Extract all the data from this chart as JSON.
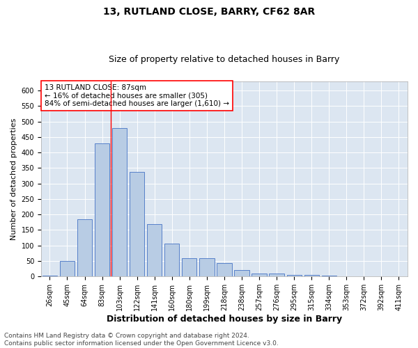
{
  "title": "13, RUTLAND CLOSE, BARRY, CF62 8AR",
  "subtitle": "Size of property relative to detached houses in Barry",
  "xlabel": "Distribution of detached houses by size in Barry",
  "ylabel": "Number of detached properties",
  "categories": [
    "26sqm",
    "45sqm",
    "64sqm",
    "83sqm",
    "103sqm",
    "122sqm",
    "141sqm",
    "160sqm",
    "180sqm",
    "199sqm",
    "218sqm",
    "238sqm",
    "257sqm",
    "276sqm",
    "295sqm",
    "315sqm",
    "334sqm",
    "353sqm",
    "372sqm",
    "392sqm",
    "411sqm"
  ],
  "values": [
    3,
    50,
    185,
    430,
    480,
    337,
    170,
    106,
    60,
    60,
    44,
    20,
    10,
    10,
    6,
    4,
    2,
    1,
    1,
    1,
    1
  ],
  "bar_color": "#b8cce4",
  "bar_edge_color": "#4472c4",
  "background_color": "#dce6f1",
  "grid_color": "#ffffff",
  "vline_x": 3.5,
  "annotation_text": "13 RUTLAND CLOSE: 87sqm\n← 16% of detached houses are smaller (305)\n84% of semi-detached houses are larger (1,610) →",
  "annotation_box_color": "#ffffff",
  "annotation_box_edge_color": "#ff0000",
  "vline_color": "#ff0000",
  "ylim": [
    0,
    630
  ],
  "yticks": [
    0,
    50,
    100,
    150,
    200,
    250,
    300,
    350,
    400,
    450,
    500,
    550,
    600
  ],
  "footer": "Contains HM Land Registry data © Crown copyright and database right 2024.\nContains public sector information licensed under the Open Government Licence v3.0.",
  "title_fontsize": 10,
  "subtitle_fontsize": 9,
  "xlabel_fontsize": 9,
  "ylabel_fontsize": 8,
  "tick_fontsize": 7,
  "annotation_fontsize": 7.5,
  "footer_fontsize": 6.5
}
